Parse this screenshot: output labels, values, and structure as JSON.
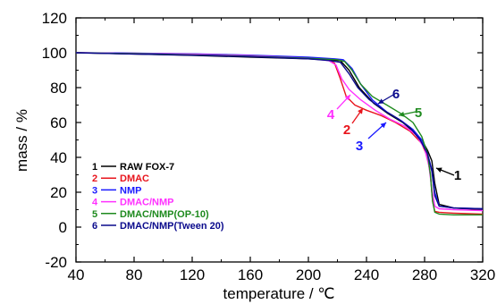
{
  "chart_data": {
    "type": "line",
    "xlabel": "temperature / ℃",
    "ylabel": "mass / %",
    "xlim": [
      40,
      320
    ],
    "ylim": [
      -20,
      120
    ],
    "xticks": [
      40,
      80,
      120,
      160,
      200,
      240,
      280,
      320
    ],
    "yticks": [
      -20,
      0,
      20,
      40,
      60,
      80,
      100,
      120
    ],
    "grid": false,
    "legend_position": "bottom-left",
    "series": [
      {
        "id": "1",
        "name": "RAW FOX-7",
        "color": "#000000",
        "x": [
          40,
          80,
          120,
          160,
          200,
          215,
          222,
          228,
          235,
          245,
          255,
          265,
          272,
          278,
          282,
          285,
          287,
          290,
          300,
          320
        ],
        "y": [
          100,
          99.3,
          98.5,
          97.5,
          96.5,
          95.8,
          95.5,
          90,
          80,
          71,
          65,
          60,
          55,
          50,
          44,
          38,
          25,
          13,
          11,
          10
        ]
      },
      {
        "id": "2",
        "name": "DMAC",
        "color": "#e8141c",
        "x": [
          40,
          80,
          120,
          160,
          200,
          214,
          218,
          222,
          226,
          232,
          240,
          250,
          260,
          270,
          278,
          282,
          284,
          285.5,
          287,
          290,
          300,
          320
        ],
        "y": [
          100,
          99.7,
          99.3,
          98.5,
          97,
          96,
          94,
          85,
          75,
          70,
          67,
          64,
          60,
          55,
          48,
          40,
          30,
          15,
          9,
          8.5,
          8,
          7.5
        ]
      },
      {
        "id": "3",
        "name": "NMP",
        "color": "#1a1aff",
        "x": [
          40,
          80,
          120,
          160,
          200,
          218,
          224,
          230,
          236,
          244,
          254,
          264,
          272,
          278,
          282,
          285,
          287,
          290,
          300,
          320
        ],
        "y": [
          100,
          99.8,
          99.4,
          98.6,
          97.5,
          96.5,
          96,
          91,
          82,
          73,
          66,
          61,
          56,
          50,
          42,
          33,
          20,
          12,
          11,
          10.5
        ]
      },
      {
        "id": "4",
        "name": "DMAC/NMP",
        "color": "#ff30ff",
        "x": [
          40,
          80,
          120,
          160,
          200,
          214,
          219,
          223,
          228,
          236,
          246,
          256,
          266,
          274,
          280,
          283,
          285,
          287,
          290,
          300,
          320
        ],
        "y": [
          100,
          99.6,
          99.2,
          98.3,
          96.8,
          95.5,
          93,
          85,
          79,
          73,
          67,
          62,
          58,
          53,
          45,
          35,
          22,
          12,
          10.5,
          10,
          9.5
        ]
      },
      {
        "id": "5",
        "name": "DMAC/NMP(OP-10)",
        "color": "#1e8a1e",
        "x": [
          40,
          80,
          120,
          160,
          200,
          220,
          225,
          230,
          236,
          244,
          254,
          264,
          272,
          278,
          282,
          284,
          285.5,
          287,
          290,
          300,
          320
        ],
        "y": [
          100,
          99.5,
          98.8,
          98,
          96.8,
          96,
          95,
          90,
          82,
          75,
          70,
          65,
          60,
          52,
          42,
          30,
          15,
          8.5,
          7.5,
          7,
          7
        ]
      },
      {
        "id": "6",
        "name": "DMAC/NMP(Tween 20)",
        "color": "#0a0a8c",
        "x": [
          40,
          80,
          120,
          160,
          200,
          215,
          222,
          228,
          234,
          242,
          252,
          262,
          270,
          277,
          282,
          285,
          287,
          290,
          300,
          320
        ],
        "y": [
          100,
          99.3,
          98.6,
          97.8,
          96.5,
          95.5,
          94.5,
          88,
          80,
          73,
          67,
          62,
          57,
          50,
          42,
          32,
          18,
          12,
          11,
          10.5
        ]
      }
    ],
    "annotations": [
      {
        "label": "1",
        "color": "#000000"
      },
      {
        "label": "2",
        "color": "#e8141c"
      },
      {
        "label": "3",
        "color": "#1a1aff"
      },
      {
        "label": "4",
        "color": "#ff30ff"
      },
      {
        "label": "5",
        "color": "#1e8a1e"
      },
      {
        "label": "6",
        "color": "#0a0a8c"
      }
    ]
  }
}
